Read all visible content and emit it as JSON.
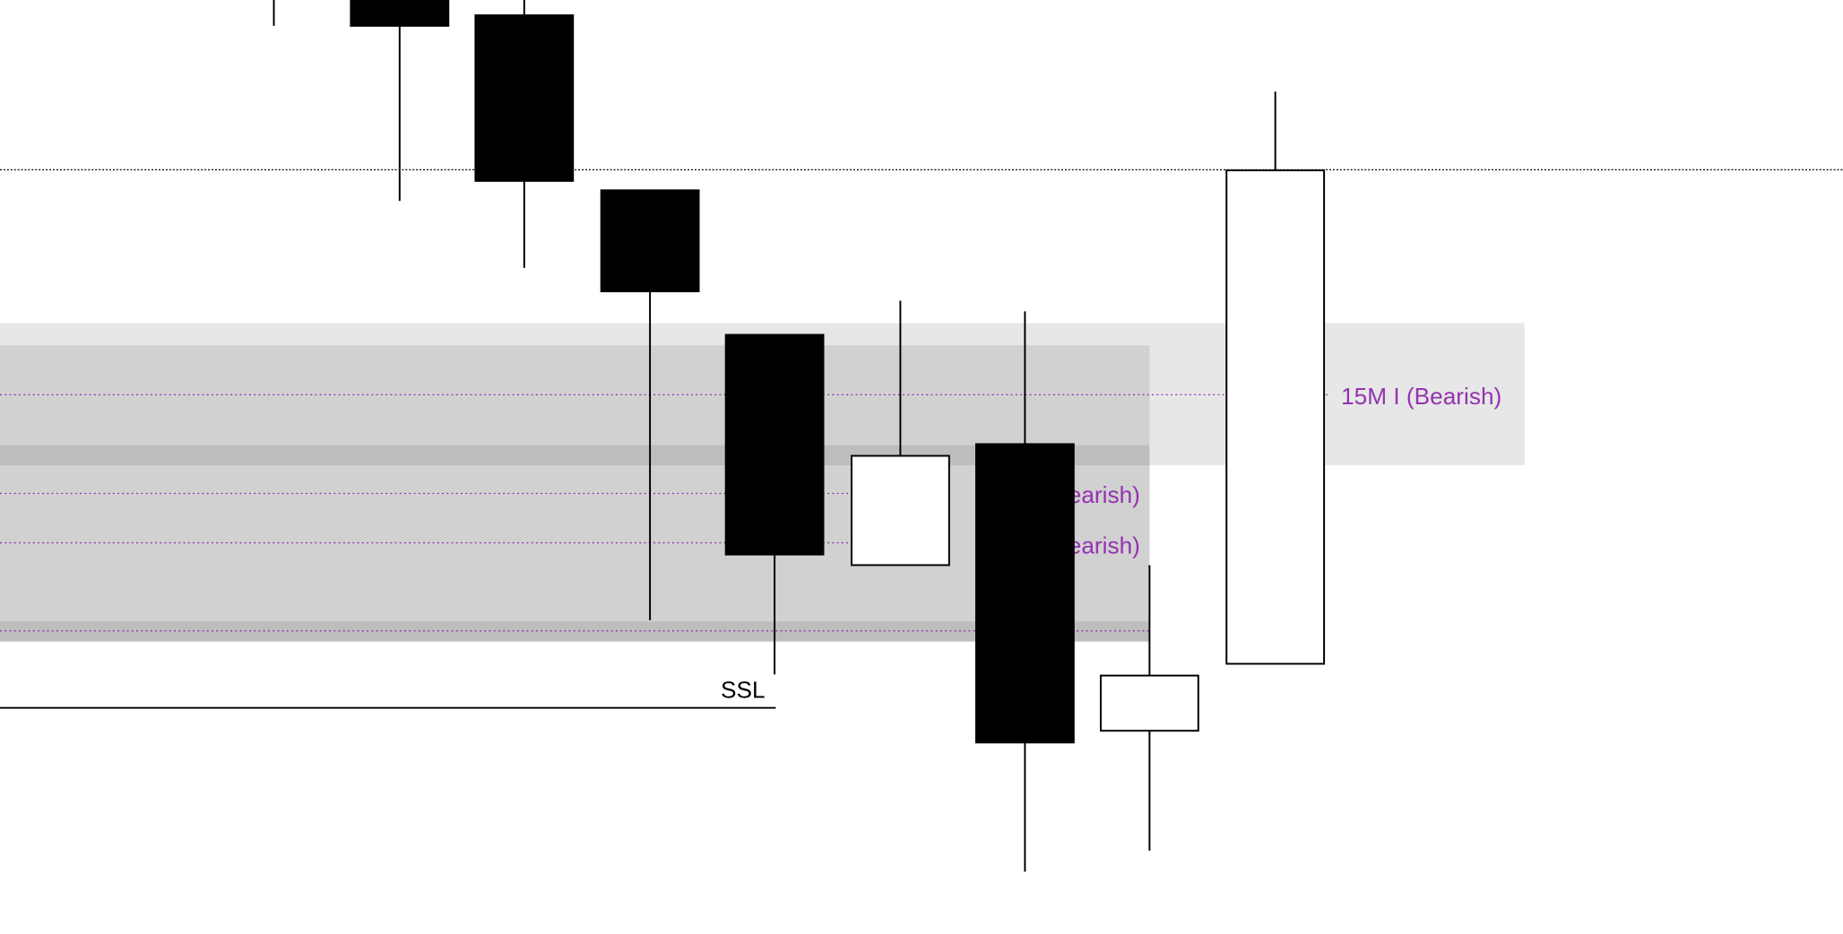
{
  "chart_data": {
    "type": "candlestick",
    "title": "",
    "xlabel": "",
    "ylabel": "",
    "ylim": [
      5.3,
      79.5
    ],
    "grid": false,
    "colors": {
      "bearish_body": "#000000",
      "bullish_body": "#ffffff",
      "wick": "#000000",
      "zone_light": "#e7e7e7",
      "zone_mid": "#d1d1d1",
      "zone_dark": "#bdbdbd",
      "level_label": "#9433b0"
    },
    "candles": [
      {
        "open": 79.5,
        "high": 79.5,
        "low": 77.3,
        "close": 77.3,
        "wick_only": true
      },
      {
        "open": 79.5,
        "high": 79.5,
        "low": 62.4,
        "close": 77.3
      },
      {
        "open": 78.2,
        "high": 79.5,
        "low": 56.7,
        "close": 64.1
      },
      {
        "open": 63.3,
        "high": 63.3,
        "low": 26.7,
        "close": 54.7
      },
      {
        "open": 51.0,
        "high": 51.0,
        "low": 22.1,
        "close": 32.3
      },
      {
        "open": 31.4,
        "high": 53.9,
        "low": 31.4,
        "close": 40.7
      },
      {
        "open": 41.7,
        "high": 53.0,
        "low": 5.3,
        "close": 16.3
      },
      {
        "open": 17.3,
        "high": 31.4,
        "low": 7.1,
        "close": 22.0
      },
      {
        "open": 23.0,
        "high": 71.7,
        "low": 23.0,
        "close": 65.0
      }
    ],
    "reference_line": 65.1,
    "zones": [
      {
        "top": 52.0,
        "bottom": 39.9,
        "extends": "far",
        "shade": "zone_light"
      },
      {
        "top": 50.1,
        "bottom": 24.9,
        "extends": "near",
        "shade": "zone_mid"
      }
    ],
    "levels": [
      {
        "price": 45.9,
        "label": "15M I (Bearish)"
      },
      {
        "price": 37.5,
        "label": "15M I (Bearish)"
      },
      {
        "price": 33.3,
        "label": "15M I (Bearish)"
      },
      {
        "price": 25.8,
        "label": ""
      }
    ],
    "liquidity": {
      "price": 19.3,
      "label": "SSL"
    }
  }
}
